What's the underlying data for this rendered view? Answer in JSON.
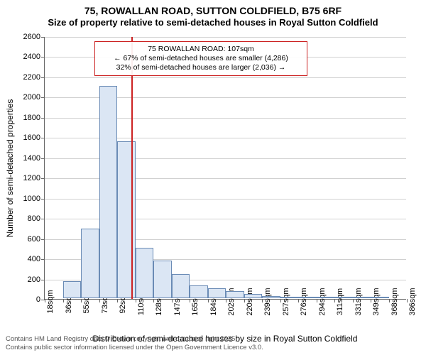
{
  "title": "75, ROWALLAN ROAD, SUTTON COLDFIELD, B75 6RF",
  "subtitle": "Size of property relative to semi-detached houses in Royal Sutton Coldfield",
  "chart": {
    "type": "histogram",
    "y_axis": {
      "label": "Number of semi-detached properties",
      "min": 0,
      "max": 2600,
      "ticks": [
        0,
        200,
        400,
        600,
        800,
        1000,
        1200,
        1400,
        1600,
        1800,
        2000,
        2200,
        2400,
        2600
      ]
    },
    "x_axis": {
      "label": "Distribution of semi-detached houses by size in Royal Sutton Coldfield",
      "ticks": [
        "18sqm",
        "36sqm",
        "55sqm",
        "73sqm",
        "92sqm",
        "110sqm",
        "128sqm",
        "147sqm",
        "165sqm",
        "184sqm",
        "202sqm",
        "220sqm",
        "239sqm",
        "257sqm",
        "276sqm",
        "294sqm",
        "311sqm",
        "331sqm",
        "349sqm",
        "368sqm",
        "386sqm"
      ]
    },
    "bars": {
      "values": [
        0,
        170,
        690,
        2100,
        1550,
        500,
        370,
        240,
        130,
        100,
        70,
        40,
        20,
        15,
        10,
        8,
        6,
        4,
        2,
        0
      ],
      "fill_color": "#dbe6f4",
      "border_color": "#6a8bb5"
    },
    "reference_line": {
      "value_sqm": 107,
      "color": "#cc2222"
    },
    "annotation": {
      "line1": "75 ROWALLAN ROAD: 107sqm",
      "line2": "← 67% of semi-detached houses are smaller (4,286)",
      "line3": "32% of semi-detached houses are larger (2,036) →",
      "border_color": "#cc2222"
    },
    "background_color": "#ffffff",
    "grid_color": "#d0d0d0"
  },
  "footer": {
    "line1": "Contains HM Land Registry data © Crown copyright and database right 2025.",
    "line2": "Contains public sector information licensed under the Open Government Licence v3.0."
  }
}
